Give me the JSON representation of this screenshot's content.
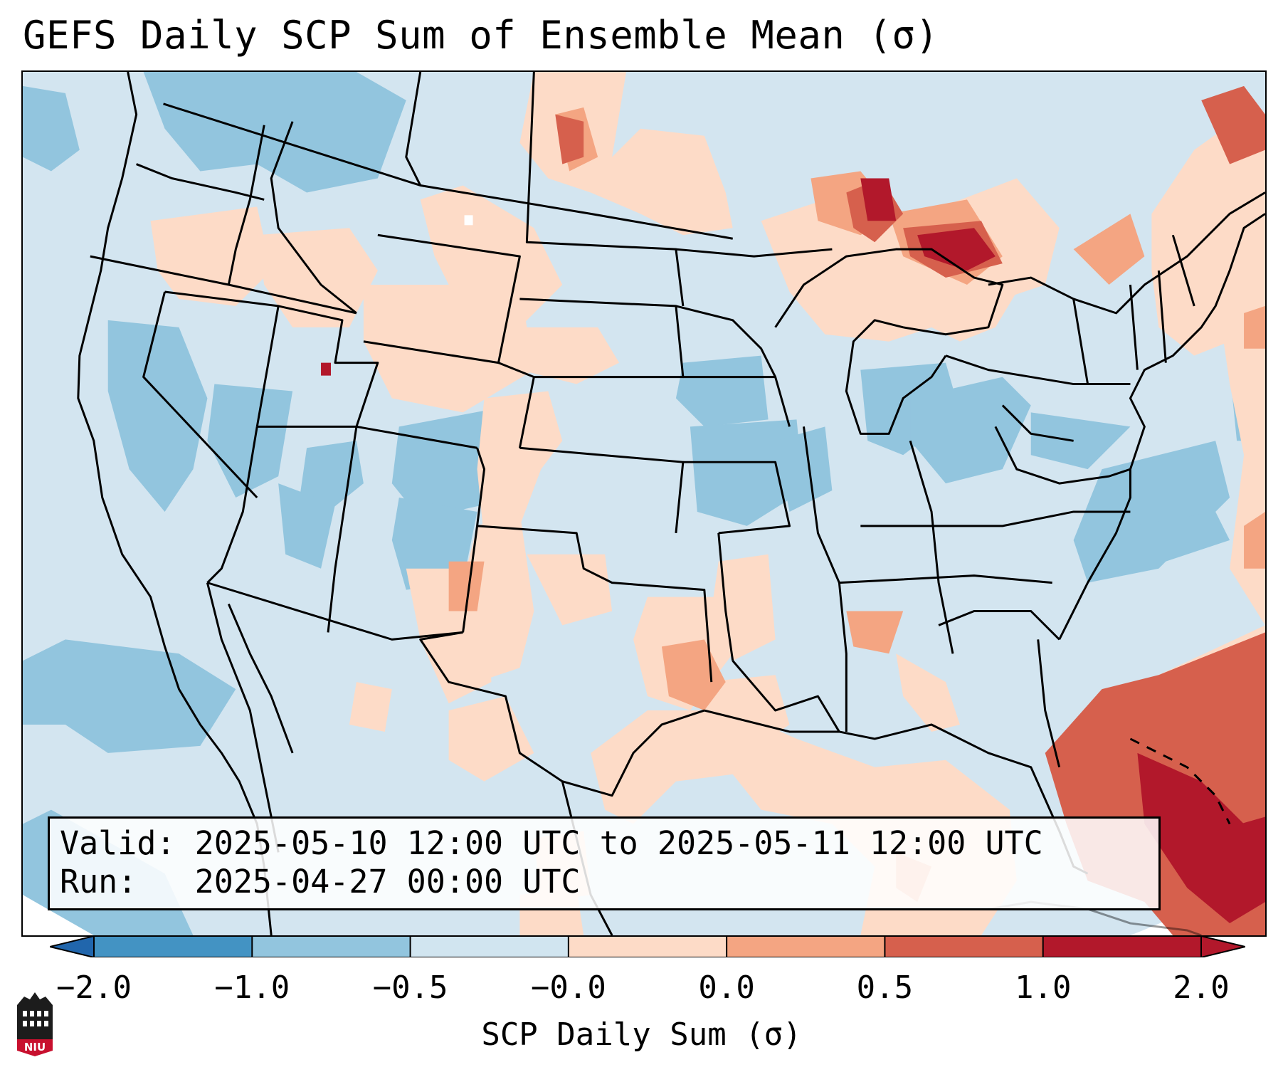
{
  "title": "GEFS Daily SCP Sum of Ensemble Mean (σ)",
  "info": {
    "valid_label": "Valid:",
    "valid_value": "2025-05-10 12:00 UTC to 2025-05-11 12:00 UTC",
    "run_label": "Run:",
    "run_value": "2025-04-27 00:00 UTC"
  },
  "colorbar": {
    "label": "SCP Daily Sum (σ)",
    "ticks": [
      "−2.0",
      "−1.0",
      "−0.5",
      "−0.0",
      "0.0",
      "0.5",
      "1.0",
      "2.0"
    ],
    "colors": [
      "#4393c3",
      "#92c5de",
      "#d1e5f0",
      "#ffffff",
      "#fddbc7",
      "#f4a582",
      "#d6604d",
      "#b2182b"
    ],
    "extend_low_color": "#2166ac",
    "extend_high_color": "#b2182b"
  },
  "map": {
    "background_color": "#d3e5f0",
    "projection": "Lambert Conformal — CONUS",
    "anomaly_areas": [
      {
        "region": "Upper Great Lakes / Michigan Upper Peninsula",
        "level": "1.0 to 2.0"
      },
      {
        "region": "Atlantic east of Florida / Bahamas",
        "level": "1.0 to 2.0"
      },
      {
        "region": "Northern Utah",
        "level": "above 2.0"
      },
      {
        "region": "Colorado / northern Plains / Iowa",
        "level": "-1.0 to -0.5"
      }
    ]
  },
  "logo": {
    "text": "NIU"
  }
}
